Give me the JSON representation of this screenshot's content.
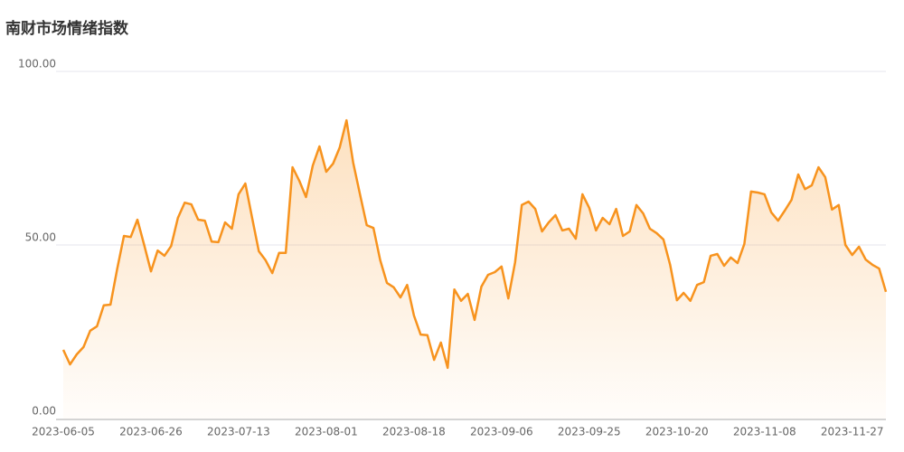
{
  "chart_data": {
    "type": "line",
    "title": "南财市场情绪指数",
    "categories": [
      "2023-06-05",
      null,
      null,
      null,
      null,
      null,
      null,
      null,
      null,
      null,
      null,
      null,
      null,
      "2023-06-26",
      null,
      null,
      null,
      null,
      null,
      null,
      null,
      null,
      null,
      null,
      null,
      null,
      "2023-07-13",
      null,
      null,
      null,
      null,
      null,
      null,
      null,
      null,
      null,
      null,
      null,
      null,
      "2023-08-01",
      null,
      null,
      null,
      null,
      null,
      null,
      null,
      null,
      null,
      null,
      null,
      null,
      "2023-08-18",
      null,
      null,
      null,
      null,
      null,
      null,
      null,
      null,
      null,
      null,
      null,
      null,
      "2023-09-06",
      null,
      null,
      null,
      null,
      null,
      null,
      null,
      null,
      null,
      null,
      null,
      null,
      "2023-09-25",
      null,
      null,
      null,
      null,
      null,
      null,
      null,
      null,
      null,
      null,
      null,
      null,
      "2023-10-20",
      null,
      null,
      null,
      null,
      null,
      null,
      null,
      null,
      null,
      null,
      null,
      null,
      "2023-11-08",
      null,
      null,
      null,
      null,
      null,
      null,
      null,
      null,
      null,
      null,
      null,
      null,
      "2023-11-27",
      null,
      null,
      null,
      null,
      null
    ],
    "values": [
      19.8,
      15.6,
      18.5,
      20.6,
      25.3,
      26.6,
      32.6,
      32.8,
      43.2,
      52.6,
      52.3,
      57.3,
      50,
      42.4,
      48.4,
      46.9,
      49.7,
      57.8,
      62.2,
      61.7,
      57.3,
      57,
      51,
      50.8,
      56.5,
      54.7,
      64.6,
      67.7,
      57.8,
      48.2,
      45.6,
      41.9,
      47.7,
      47.7,
      72.4,
      68.5,
      63.8,
      72.9,
      78.4,
      71.1,
      73.4,
      78.1,
      85.9,
      73.7,
      64.6,
      55.7,
      54.9,
      45.6,
      39.1,
      37.8,
      34.9,
      38.5,
      29.7,
      24.2,
      24,
      16.9,
      21.9,
      14.6,
      37.2,
      33.9,
      35.9,
      28.4,
      38,
      41.4,
      42.2,
      43.8,
      34.6,
      45,
      61.5,
      62.5,
      60.4,
      53.9,
      56.5,
      58.6,
      54.2,
      54.7,
      51.8,
      64.6,
      60.7,
      54.2,
      57.8,
      56,
      60.4,
      52.6,
      53.9,
      61.5,
      59.1,
      54.7,
      53.4,
      51.6,
      44.3,
      34.1,
      36.2,
      33.9,
      38.5,
      39.3,
      46.9,
      47.4,
      44,
      46.4,
      44.8,
      50.3,
      65.4,
      65.1,
      64.6,
      59.4,
      57,
      59.9,
      63,
      70.3,
      66.1,
      67.2,
      72.4,
      69.5,
      60.2,
      61.5,
      50,
      47.1,
      49.5,
      45.8,
      44.3,
      43.2,
      36.5
    ],
    "color": "#f7931e",
    "ylim": [
      0,
      100
    ],
    "yticks": [
      {
        "value": 0,
        "label": "0.00"
      },
      {
        "value": 50,
        "label": "50.00"
      },
      {
        "value": 100,
        "label": "100.00"
      }
    ],
    "grid": true
  }
}
